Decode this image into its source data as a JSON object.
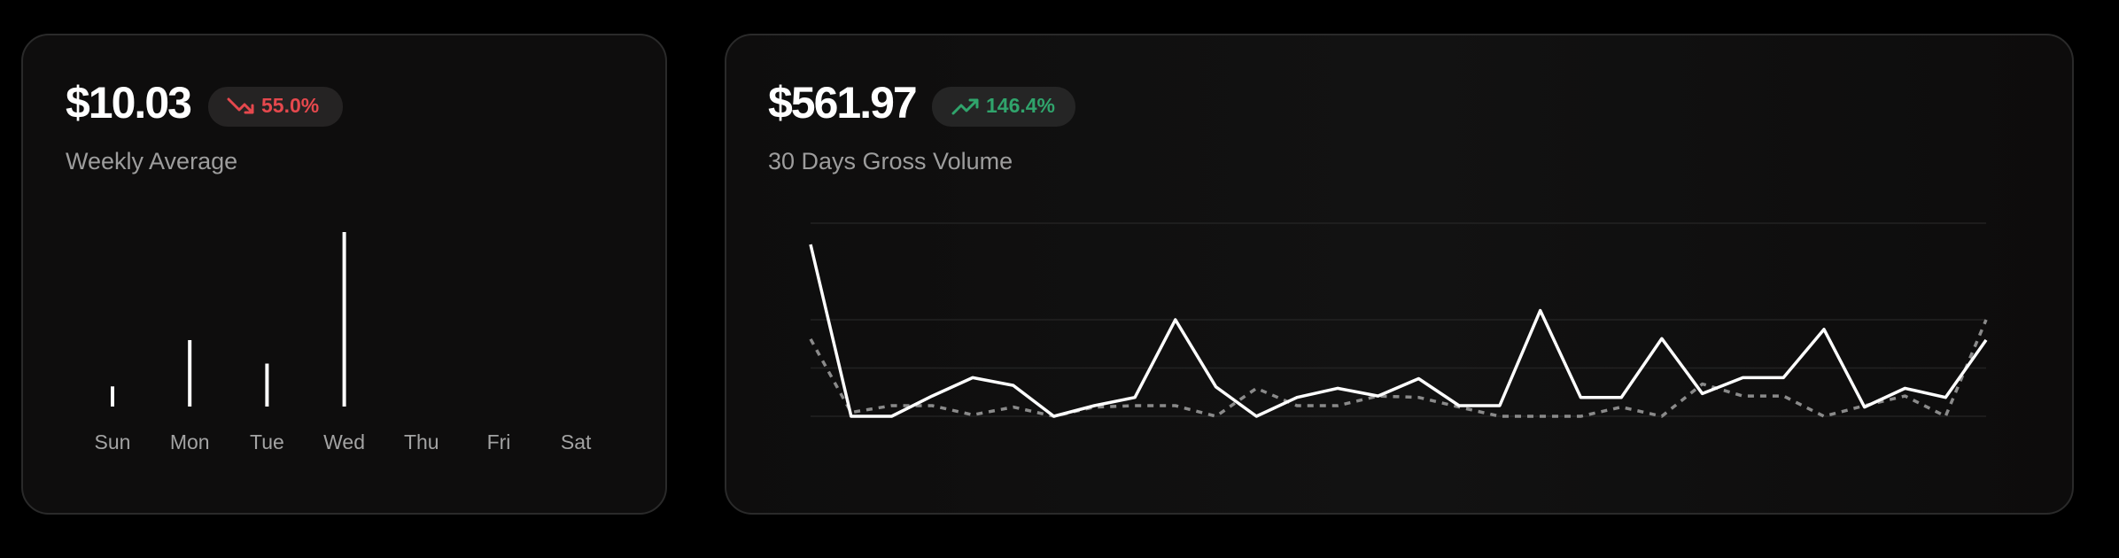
{
  "chart_data": [
    {
      "type": "bar",
      "title": "$10.03",
      "change": "55.0%",
      "trend": "down",
      "subtitle": "Weekly Average",
      "categories": [
        "Sun",
        "Mon",
        "Tue",
        "Wed",
        "Thu",
        "Fri",
        "Sat"
      ],
      "values": [
        3.0,
        9.9,
        6.4,
        26,
        0,
        0,
        0
      ],
      "ylim": [
        0,
        26
      ],
      "color": "#ffffff"
    },
    {
      "type": "line",
      "title": "$561.97",
      "change": "146.4%",
      "trend": "up",
      "subtitle": "30 Days Gross Volume",
      "ylim": [
        0,
        4
      ],
      "yticks": [
        0,
        1,
        2,
        4
      ],
      "grid": true,
      "series": [
        {
          "color": "#ffffff",
          "dashed": false,
          "values": [
            3.56,
            0,
            0,
            0.42,
            0.8,
            0.64,
            0,
            0.22,
            0.39,
            2,
            0.61,
            0,
            0.39,
            0.58,
            0.42,
            0.78,
            0.22,
            0.22,
            2.19,
            0.39,
            0.39,
            1.61,
            0.47,
            0.8,
            0.8,
            1.8,
            0.19,
            0.58,
            0.39,
            1.58
          ]
        },
        {
          "color": "#8a8a8a",
          "dashed": true,
          "values": [
            1.6,
            0.08,
            0.22,
            0.22,
            0.03,
            0.19,
            0,
            0.19,
            0.22,
            0.22,
            0,
            0.58,
            0.22,
            0.22,
            0.42,
            0.39,
            0.19,
            0,
            0,
            0,
            0.19,
            0,
            0.67,
            0.42,
            0.42,
            0,
            0.22,
            0.42,
            0,
            2
          ]
        }
      ]
    }
  ]
}
